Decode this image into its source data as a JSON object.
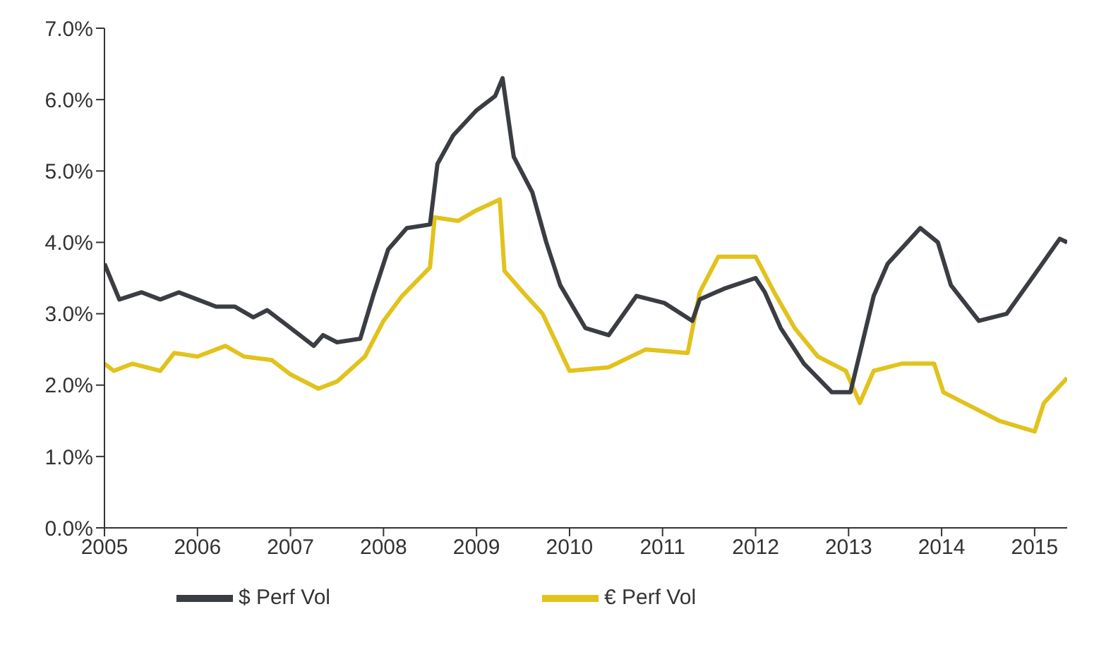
{
  "chart_data": {
    "type": "line",
    "xlim": [
      2005,
      2015.35
    ],
    "xticks": [
      2005,
      2006,
      2007,
      2008,
      2009,
      2010,
      2011,
      2012,
      2013,
      2014,
      2015
    ],
    "ylim": [
      0,
      7
    ],
    "yticks": [
      {
        "value": 0,
        "label": "0.0%"
      },
      {
        "value": 1,
        "label": "1.0%"
      },
      {
        "value": 2,
        "label": "2.0%"
      },
      {
        "value": 3,
        "label": "3.0%"
      },
      {
        "value": 4,
        "label": "4.0%"
      },
      {
        "value": 5,
        "label": "5.0%"
      },
      {
        "value": 6,
        "label": "6.0%"
      },
      {
        "value": 7,
        "label": "7.0%"
      }
    ],
    "grid": false,
    "legend": "bottom",
    "marker": "none",
    "line_style": "solid",
    "series": [
      {
        "name": "€ Perf Vol",
        "color": "#e2c21c",
        "x": [
          2005,
          2005.1,
          2005.3,
          2005.6,
          2005.75,
          2006,
          2006.3,
          2006.5,
          2006.8,
          2007,
          2007.3,
          2007.5,
          2007.8,
          2008,
          2008.2,
          2008.5,
          2008.55,
          2008.8,
          2009,
          2009.25,
          2009.3,
          2009.5,
          2009.71,
          2010,
          2010.42,
          2010.82,
          2011.27,
          2011.4,
          2011.6,
          2012,
          2012.2,
          2012.42,
          2012.67,
          2012.97,
          2013.12,
          2013.27,
          2013.57,
          2013.92,
          2014.02,
          2014.32,
          2014.62,
          2015,
          2015.1,
          2015.35
        ],
        "values": [
          2.3,
          2.2,
          2.3,
          2.2,
          2.45,
          2.4,
          2.55,
          2.4,
          2.35,
          2.15,
          1.95,
          2.05,
          2.4,
          2.9,
          3.25,
          3.65,
          4.35,
          4.3,
          4.45,
          4.6,
          3.6,
          3.3,
          3.0,
          2.2,
          2.25,
          2.5,
          2.45,
          3.3,
          3.8,
          3.8,
          3.3,
          2.8,
          2.4,
          2.2,
          1.75,
          2.2,
          2.3,
          2.3,
          1.9,
          1.7,
          1.5,
          1.35,
          1.75,
          2.1
        ]
      },
      {
        "name": "$ Perf Vol",
        "color": "#3a3d42",
        "x": [
          2005,
          2005.16,
          2005.4,
          2005.6,
          2005.8,
          2006,
          2006.2,
          2006.4,
          2006.6,
          2006.75,
          2006.95,
          2007.25,
          2007.35,
          2007.5,
          2007.75,
          2007.9,
          2008.05,
          2008.25,
          2008.5,
          2008.58,
          2008.75,
          2009,
          2009.2,
          2009.28,
          2009.4,
          2009.6,
          2009.75,
          2009.9,
          2010.17,
          2010.42,
          2010.72,
          2011.02,
          2011.32,
          2011.4,
          2011.66,
          2012,
          2012.1,
          2012.27,
          2012.52,
          2012.82,
          2013.02,
          2013.27,
          2013.42,
          2013.77,
          2013.96,
          2014.1,
          2014.4,
          2014.7,
          2015,
          2015.27,
          2015.35
        ],
        "values": [
          3.7,
          3.2,
          3.3,
          3.2,
          3.3,
          3.2,
          3.1,
          3.1,
          2.95,
          3.05,
          2.85,
          2.55,
          2.7,
          2.6,
          2.65,
          3.3,
          3.9,
          4.2,
          4.25,
          5.1,
          5.5,
          5.85,
          6.05,
          6.3,
          5.2,
          4.7,
          4.0,
          3.4,
          2.8,
          2.7,
          3.25,
          3.15,
          2.9,
          3.2,
          3.35,
          3.5,
          3.3,
          2.8,
          2.3,
          1.9,
          1.9,
          3.25,
          3.7,
          4.2,
          4.0,
          3.4,
          2.9,
          3.0,
          3.55,
          4.05,
          4.0
        ]
      }
    ]
  }
}
